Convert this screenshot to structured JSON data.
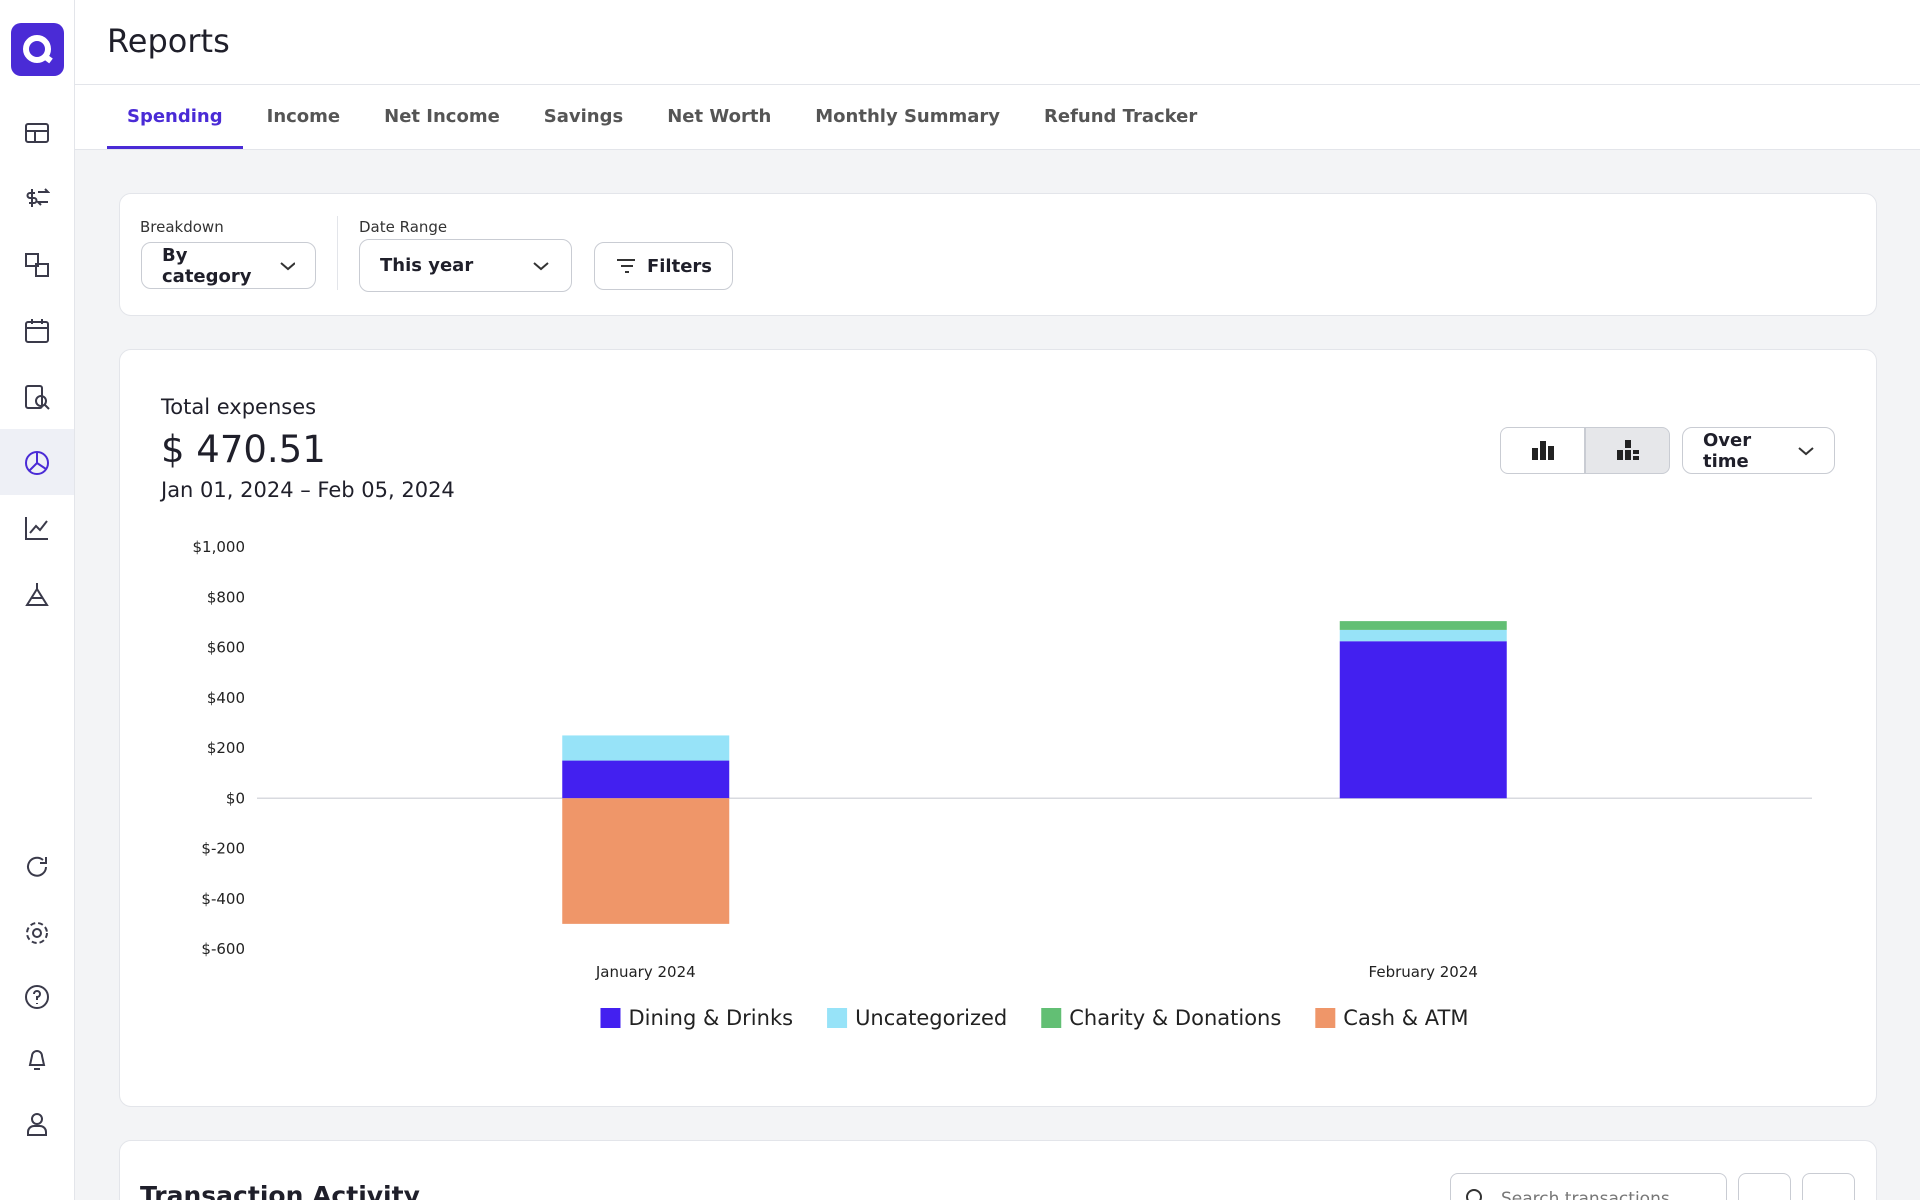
{
  "header": {
    "title": "Reports"
  },
  "tabs": [
    "Spending",
    "Income",
    "Net Income",
    "Savings",
    "Net Worth",
    "Monthly Summary",
    "Refund Tracker"
  ],
  "filters": {
    "breakdown_label": "Breakdown",
    "breakdown": "By category",
    "date_range_label": "Date Range",
    "date_range": "This year",
    "filters_button": "Filters"
  },
  "summary": {
    "label": "Total expenses",
    "amount": "$ 470.51",
    "period": "Jan 01, 2024 – Feb 05, 2024",
    "view": "Over time"
  },
  "chart_data": {
    "type": "stacked_bar",
    "categories": [
      "January 2024",
      "February 2024"
    ],
    "series": [
      {
        "name": "Dining & Drinks",
        "color": "#4320f0",
        "values": [
          150,
          625
        ]
      },
      {
        "name": "Uncategorized",
        "color": "#97e3f8",
        "values": [
          100,
          45
        ]
      },
      {
        "name": "Charity & Donations",
        "color": "#62bf74",
        "values": [
          null,
          35
        ]
      },
      {
        "name": "Cash & ATM",
        "color": "#ef9669",
        "values": [
          -500,
          null
        ]
      }
    ],
    "ylim": [
      -600,
      1000
    ],
    "yticks": [
      {
        "value": -600,
        "label": "$-600"
      },
      {
        "value": -400,
        "label": "$-400"
      },
      {
        "value": -200,
        "label": "$-200"
      },
      {
        "value": 0,
        "label": "$0"
      },
      {
        "value": 200,
        "label": "$200"
      },
      {
        "value": 400,
        "label": "$400"
      },
      {
        "value": 600,
        "label": "$600"
      },
      {
        "value": 800,
        "label": "$800"
      },
      {
        "value": 1000,
        "label": "$1,000"
      }
    ],
    "grid": false
  },
  "transactions": {
    "title": "Transaction Activity",
    "search_placeholder": "Search transactions"
  }
}
